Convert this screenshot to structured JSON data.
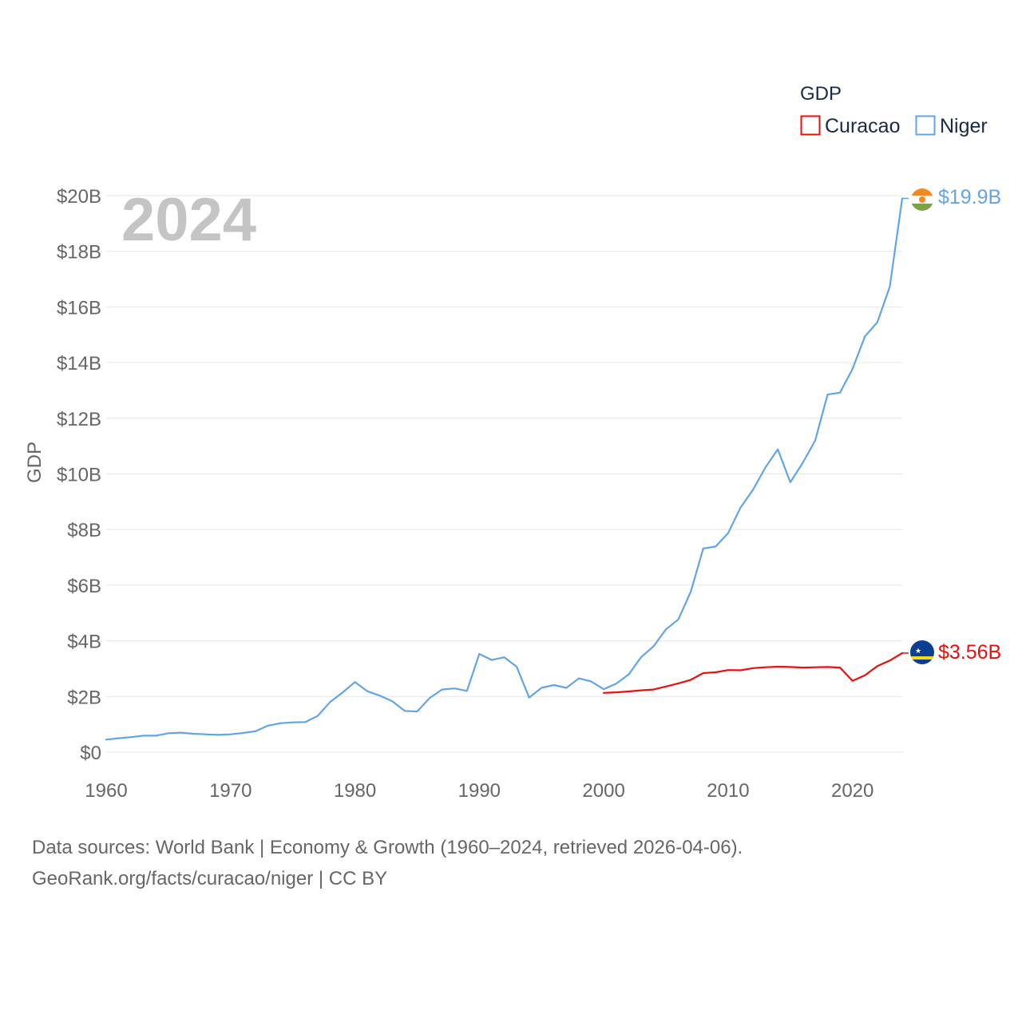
{
  "chart_data": {
    "type": "line",
    "title": "GDP",
    "year_label": "2024",
    "ylabel": "GDP",
    "xlabel": "",
    "xlim": [
      1960,
      2024
    ],
    "ylim": [
      0,
      20
    ],
    "y_unit": "billion USD",
    "y_ticks": [
      0,
      2,
      4,
      6,
      8,
      10,
      12,
      14,
      16,
      18,
      20
    ],
    "y_tick_labels": [
      "$0",
      "$2B",
      "$4B",
      "$6B",
      "$8B",
      "$10B",
      "$12B",
      "$14B",
      "$16B",
      "$18B",
      "$20B"
    ],
    "x_ticks": [
      1960,
      1970,
      1980,
      1990,
      2000,
      2010,
      2020
    ],
    "x_tick_labels": [
      "1960",
      "1970",
      "1980",
      "1990",
      "2000",
      "2010",
      "2020"
    ],
    "grid": true,
    "legend_position": "top-right",
    "series": [
      {
        "name": "Curacao",
        "color": "#e8100b",
        "end_label": "$3.56B",
        "flag": "curacao-flag",
        "x": [
          2000,
          2001,
          2002,
          2003,
          2004,
          2005,
          2006,
          2007,
          2008,
          2009,
          2010,
          2011,
          2012,
          2013,
          2014,
          2015,
          2016,
          2017,
          2018,
          2019,
          2020,
          2021,
          2022,
          2023,
          2024
        ],
        "values": [
          2.13,
          2.15,
          2.18,
          2.22,
          2.25,
          2.36,
          2.47,
          2.6,
          2.84,
          2.87,
          2.95,
          2.94,
          3.02,
          3.05,
          3.07,
          3.06,
          3.04,
          3.05,
          3.06,
          3.04,
          2.56,
          2.76,
          3.09,
          3.29,
          3.56
        ]
      },
      {
        "name": "Niger",
        "color": "#63a4e6",
        "end_label": "$19.9B",
        "flag": "niger-flag",
        "x": [
          1960,
          1961,
          1962,
          1963,
          1964,
          1965,
          1966,
          1967,
          1968,
          1969,
          1970,
          1971,
          1972,
          1973,
          1974,
          1975,
          1976,
          1977,
          1978,
          1979,
          1980,
          1981,
          1982,
          1983,
          1984,
          1985,
          1986,
          1987,
          1988,
          1989,
          1990,
          1991,
          1992,
          1993,
          1994,
          1995,
          1996,
          1997,
          1998,
          1999,
          2000,
          2001,
          2002,
          2003,
          2004,
          2005,
          2006,
          2007,
          2008,
          2009,
          2010,
          2011,
          2012,
          2013,
          2014,
          2015,
          2016,
          2017,
          2018,
          2019,
          2020,
          2021,
          2022,
          2023,
          2024
        ],
        "values": [
          0.45,
          0.5,
          0.54,
          0.59,
          0.59,
          0.68,
          0.7,
          0.66,
          0.64,
          0.62,
          0.64,
          0.69,
          0.75,
          0.95,
          1.04,
          1.07,
          1.08,
          1.3,
          1.8,
          2.14,
          2.52,
          2.19,
          2.03,
          1.83,
          1.48,
          1.46,
          1.94,
          2.25,
          2.29,
          2.2,
          3.53,
          3.31,
          3.41,
          3.07,
          1.96,
          2.31,
          2.41,
          2.31,
          2.65,
          2.54,
          2.26,
          2.46,
          2.79,
          3.41,
          3.8,
          4.41,
          4.77,
          5.77,
          7.32,
          7.39,
          7.87,
          8.79,
          9.43,
          10.23,
          10.88,
          9.7,
          10.4,
          11.2,
          12.85,
          12.92,
          13.77,
          14.94,
          15.45,
          16.73,
          19.9
        ]
      }
    ]
  },
  "footer": {
    "line1": "Data sources: World Bank | Economy & Growth (1960–2024, retrieved 2026-04-06).",
    "line2": "GeoRank.org/facts/curacao/niger | CC BY"
  }
}
